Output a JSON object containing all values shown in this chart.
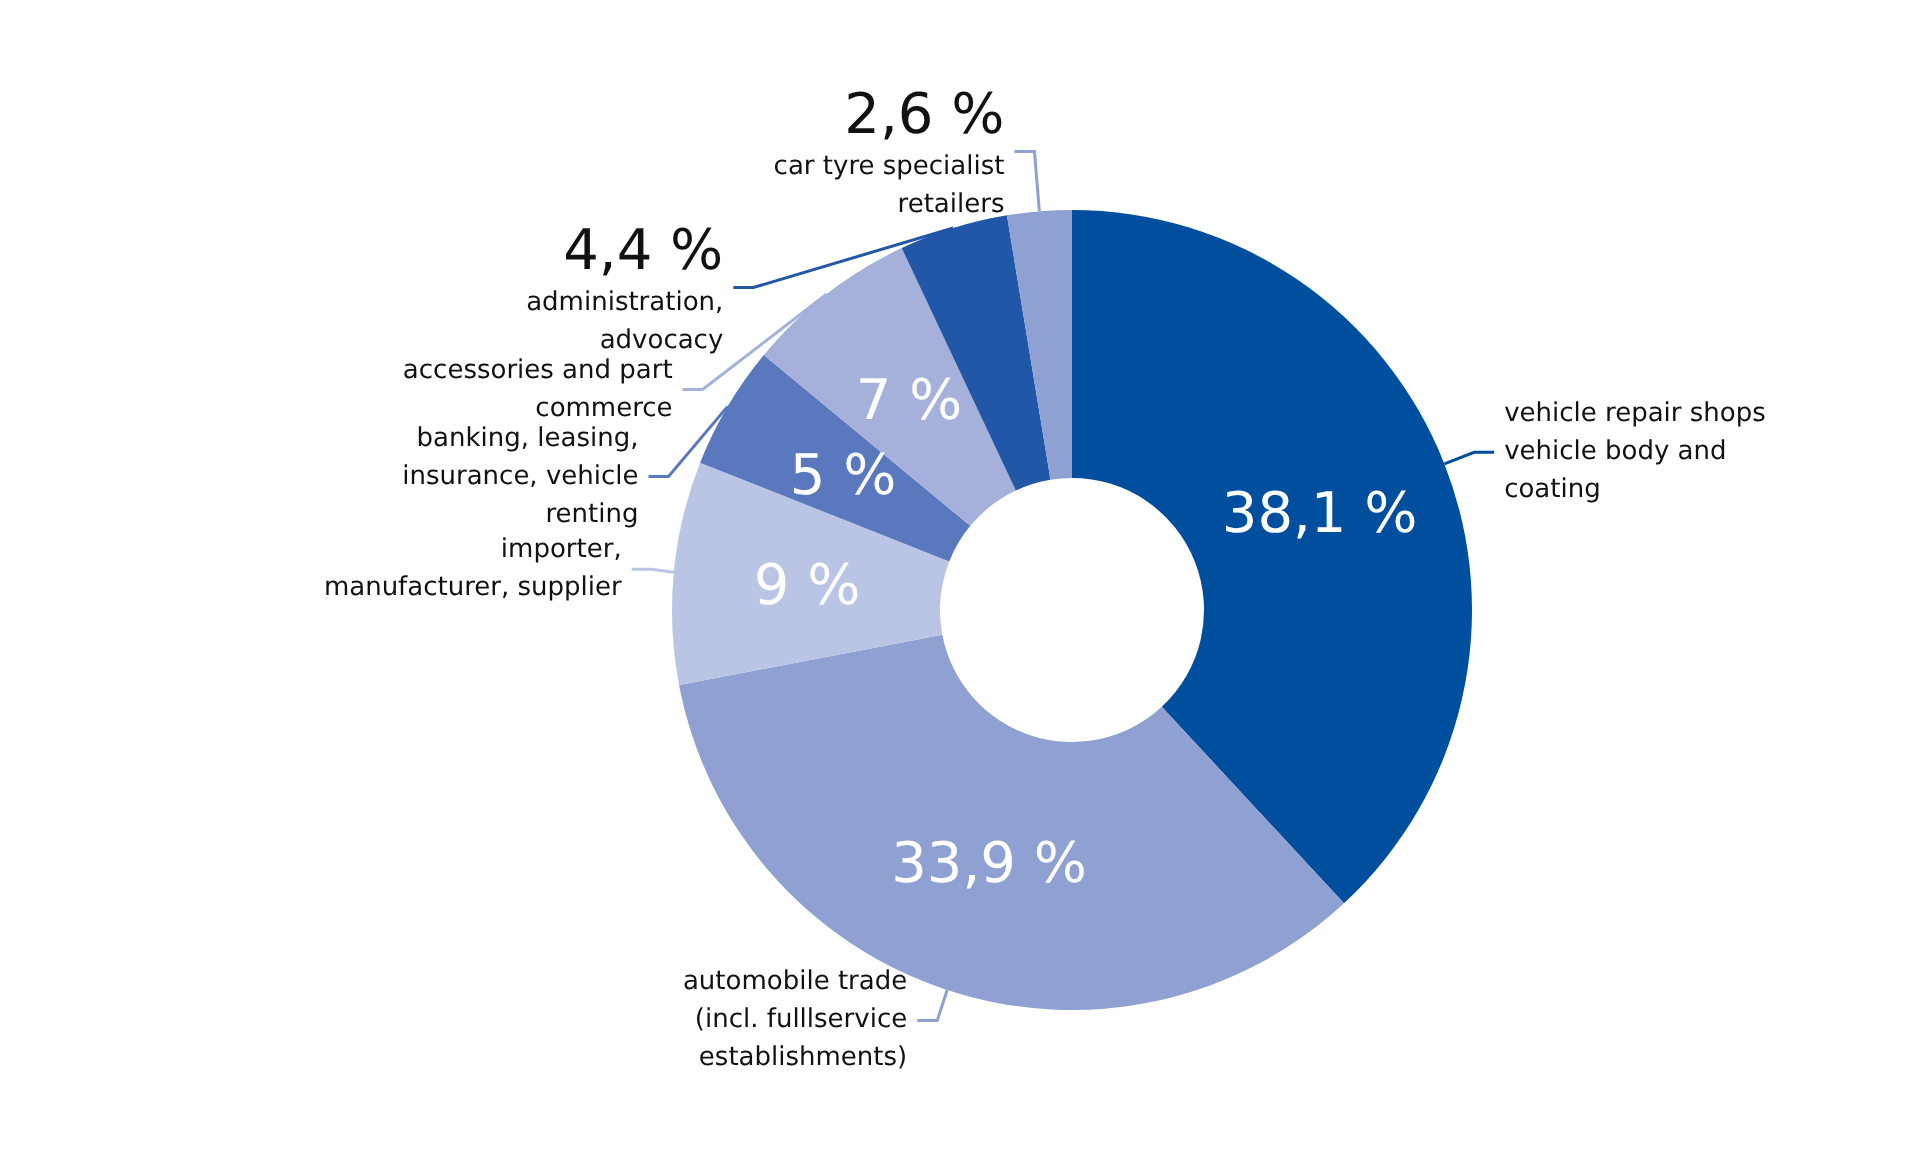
{
  "chart_data": {
    "type": "donut",
    "categories": [
      "vehicle repair shops vehicle body and coating",
      "automobile trade (incl. fulllservice establishments)",
      "importer, manufacturer, supplier",
      "banking, leasing, insurance, vehicle renting",
      "accessories and part commerce",
      "administration, advocacy",
      "car tyre specialist retailers"
    ],
    "values": [
      38.1,
      33.9,
      9,
      5,
      7,
      4.4,
      2.6
    ],
    "colors": [
      "#004f9f",
      "#8fa0d2",
      "#bac4e5",
      "#5a78bd",
      "#a5b1db",
      "#2257a8",
      "#8fa0d2"
    ],
    "value_labels": [
      "38,1 %",
      "33,9 %",
      "9 %",
      "5 %",
      "7 %",
      "4,4 %",
      "2,6 %"
    ],
    "legend": false
  }
}
